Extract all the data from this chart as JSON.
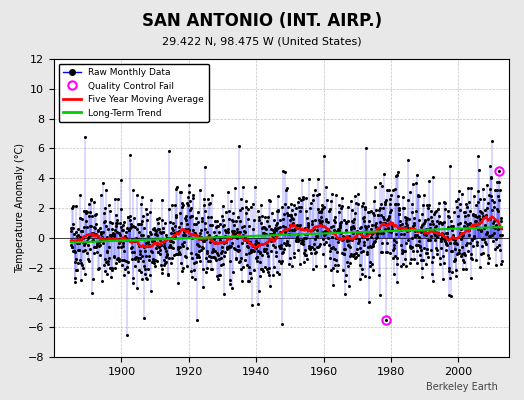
{
  "title": "SAN ANTONIO (INT. AIRP.)",
  "subtitle": "29.422 N, 98.475 W (United States)",
  "ylabel": "Temperature Anomaly (°C)",
  "credit": "Berkeley Earth",
  "ylim": [
    -8,
    12
  ],
  "yticks": [
    -8,
    -6,
    -4,
    -2,
    0,
    2,
    4,
    6,
    8,
    10,
    12
  ],
  "xlim": [
    1880,
    2015
  ],
  "xticks": [
    1900,
    1920,
    1940,
    1960,
    1980,
    2000
  ],
  "background_color": "#e8e8e8",
  "plot_bg_color": "#ffffff",
  "raw_line_color": "#0000ff",
  "raw_dot_color": "#000000",
  "ma_color": "#ff0000",
  "trend_color": "#00cc00",
  "qc_fail_color": "#ff00ff",
  "legend_loc": "upper left",
  "seed": 42,
  "start_year": 1885,
  "end_year": 2013,
  "n_months": 1536,
  "qc_fail_indices": [
    1120,
    560
  ]
}
